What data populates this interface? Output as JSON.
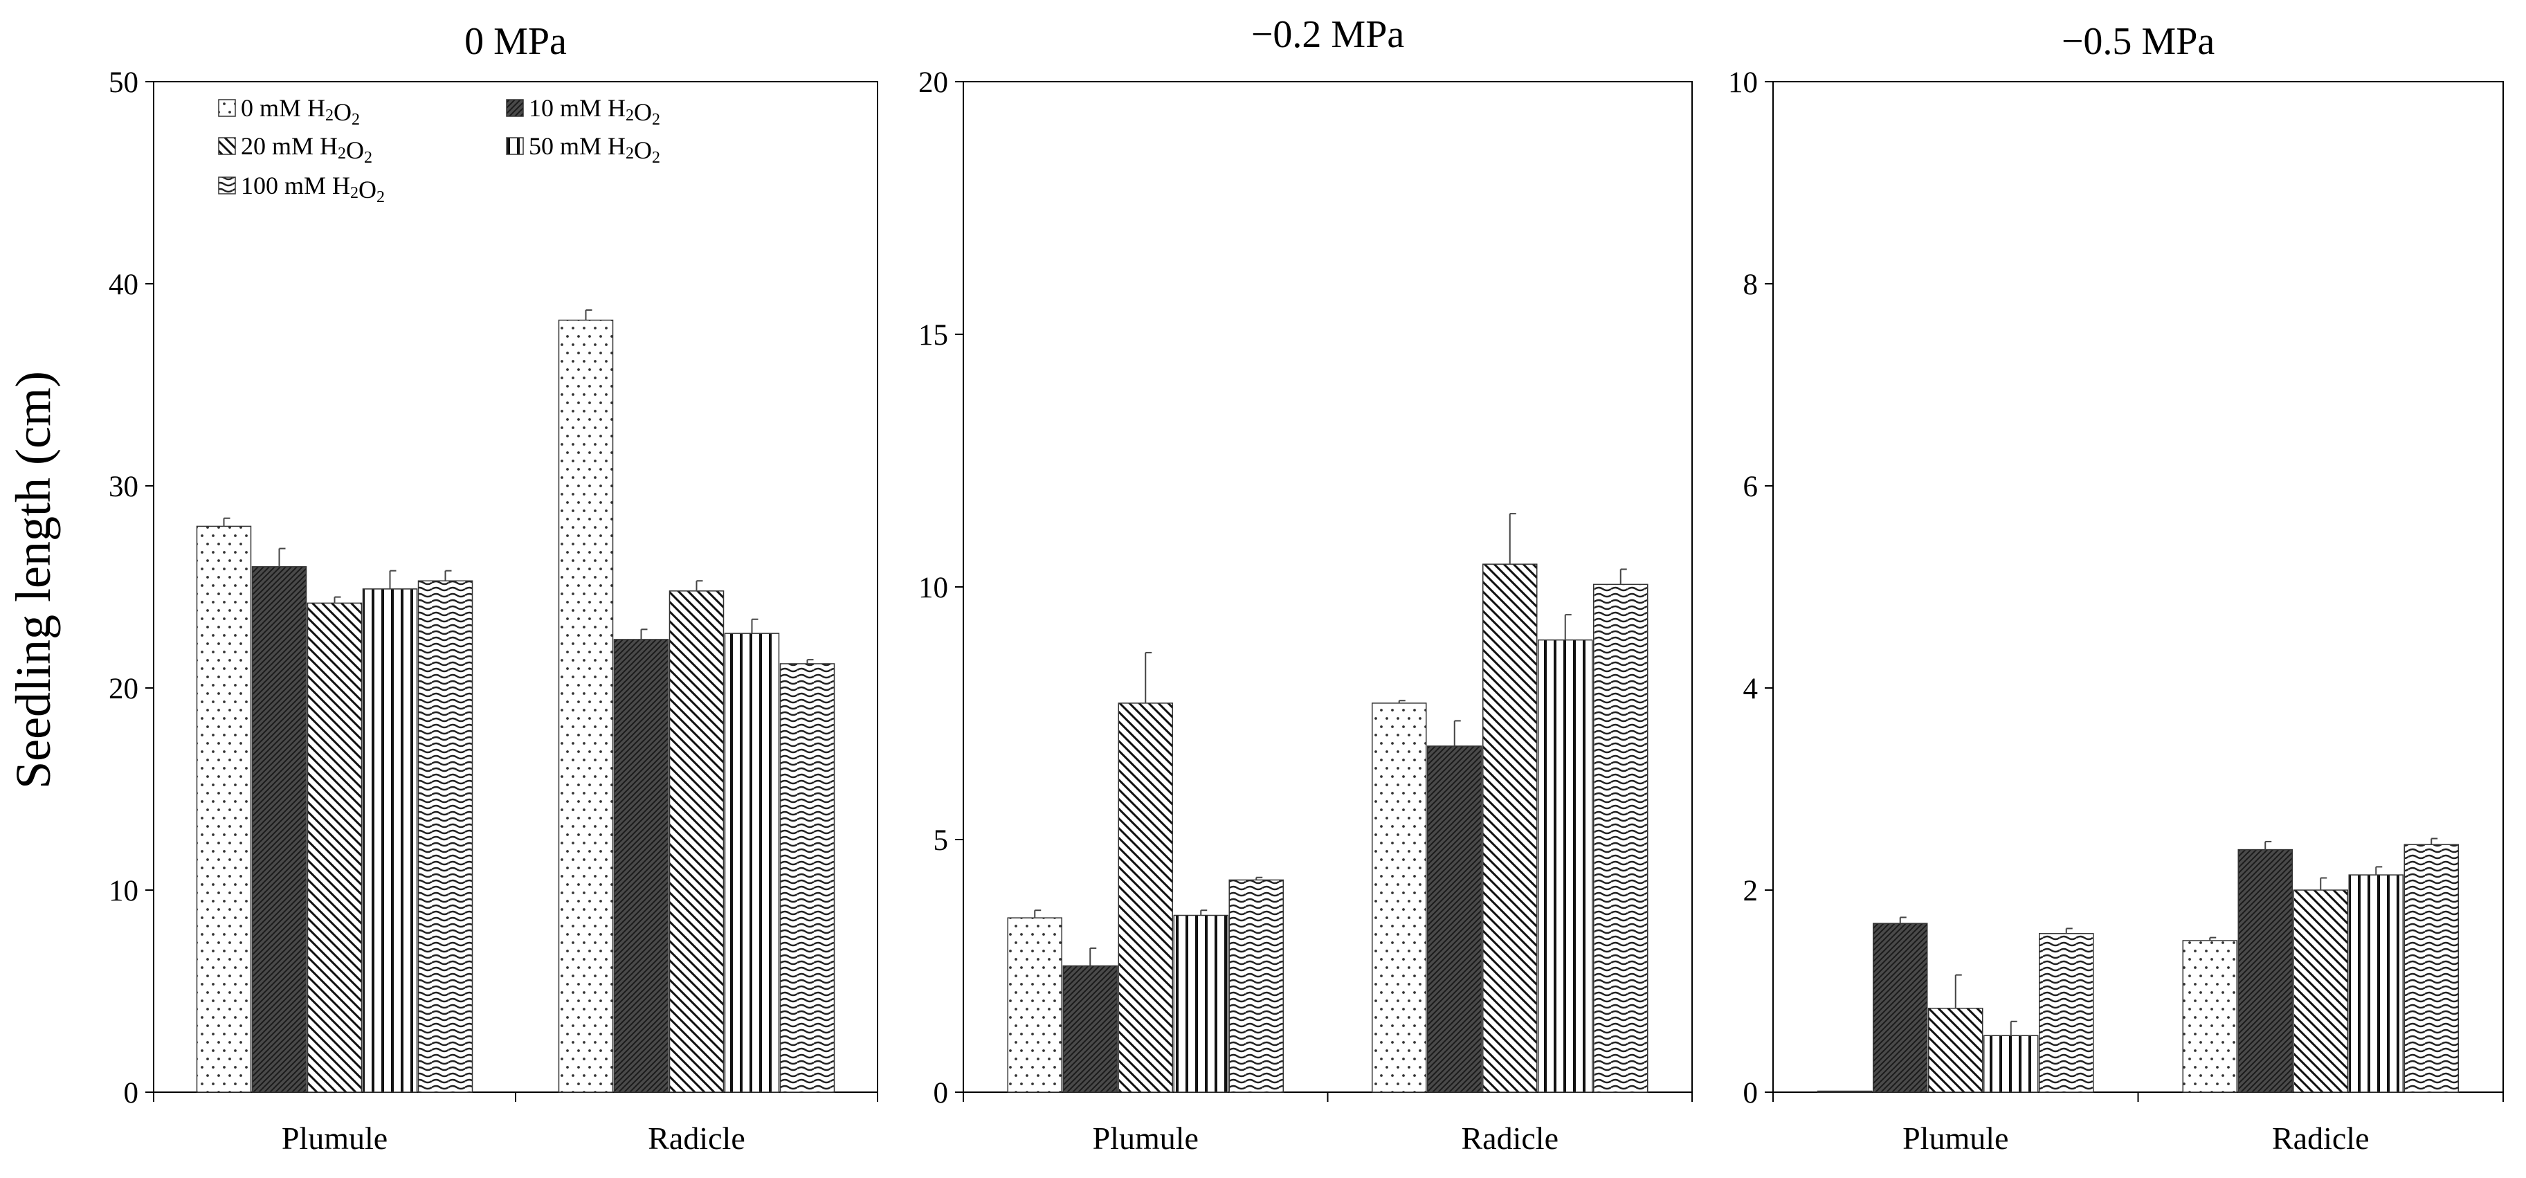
{
  "chart_data": {
    "type": "bar",
    "ylabel": "Seedling length (cm)",
    "categories": [
      "Plumule",
      "Radicle"
    ],
    "legend": [
      {
        "name": "0 mM H₂O₂",
        "dose": "0 mM",
        "chem": "H₂O₂",
        "pattern": "dots"
      },
      {
        "name": "10 mM H₂O₂",
        "dose": "10 mM",
        "chem": "H₂O₂",
        "pattern": "dark"
      },
      {
        "name": "20 mM H₂O₂",
        "dose": "20 mM",
        "chem": "H₂O₂",
        "pattern": "diagonal"
      },
      {
        "name": "50 mM H₂O₂",
        "dose": "50 mM",
        "chem": "H₂O₂",
        "pattern": "vertical"
      },
      {
        "name": "100 mM H₂O₂",
        "dose": "100 mM",
        "chem": "H₂O₂",
        "pattern": "wave"
      }
    ],
    "panels": [
      {
        "title": "0 MPa",
        "ylim": [
          0,
          50
        ],
        "yticks": [
          0,
          10,
          20,
          30,
          40,
          50
        ],
        "series": [
          {
            "name": "0 mM H₂O₂",
            "values": [
              28.0,
              38.2
            ],
            "errors": [
              0.4,
              0.5
            ]
          },
          {
            "name": "10 mM H₂O₂",
            "values": [
              26.0,
              22.4
            ],
            "errors": [
              0.9,
              0.5
            ]
          },
          {
            "name": "20 mM H₂O₂",
            "values": [
              24.2,
              24.8
            ],
            "errors": [
              0.3,
              0.5
            ]
          },
          {
            "name": "50 mM H₂O₂",
            "values": [
              24.9,
              22.7
            ],
            "errors": [
              0.9,
              0.7
            ]
          },
          {
            "name": "100 mM H₂O₂",
            "values": [
              25.3,
              21.2
            ],
            "errors": [
              0.5,
              0.2
            ]
          }
        ]
      },
      {
        "title": "−0.2 MPa",
        "ylim": [
          0,
          20
        ],
        "yticks": [
          0,
          5,
          10,
          15,
          20
        ],
        "series": [
          {
            "name": "0 mM H₂O₂",
            "values": [
              3.45,
              7.7
            ],
            "errors": [
              0.15,
              0.05
            ]
          },
          {
            "name": "10 mM H₂O₂",
            "values": [
              2.5,
              6.85
            ],
            "errors": [
              0.35,
              0.5
            ]
          },
          {
            "name": "20 mM H₂O₂",
            "values": [
              7.7,
              10.45
            ],
            "errors": [
              1.0,
              1.0
            ]
          },
          {
            "name": "50 mM H₂O₂",
            "values": [
              3.5,
              8.95
            ],
            "errors": [
              0.1,
              0.5
            ]
          },
          {
            "name": "100 mM H₂O₂",
            "values": [
              4.2,
              10.05
            ],
            "errors": [
              0.05,
              0.3
            ]
          }
        ]
      },
      {
        "title": "−0.5 MPa",
        "ylim": [
          0,
          10
        ],
        "yticks": [
          0,
          2,
          4,
          6,
          8,
          10
        ],
        "series": [
          {
            "name": "0 mM H₂O₂",
            "values": [
              0.0,
              1.5
            ],
            "errors": [
              0,
              0.03
            ]
          },
          {
            "name": "10 mM H₂O₂",
            "values": [
              1.67,
              2.4
            ],
            "errors": [
              0.06,
              0.08
            ]
          },
          {
            "name": "20 mM H₂O₂",
            "values": [
              0.83,
              2.0
            ],
            "errors": [
              0.33,
              0.12
            ]
          },
          {
            "name": "50 mM H₂O₂",
            "values": [
              0.56,
              2.15
            ],
            "errors": [
              0.14,
              0.08
            ]
          },
          {
            "name": "100 mM H₂O₂",
            "values": [
              1.57,
              2.45
            ],
            "errors": [
              0.05,
              0.06
            ]
          }
        ]
      }
    ]
  }
}
